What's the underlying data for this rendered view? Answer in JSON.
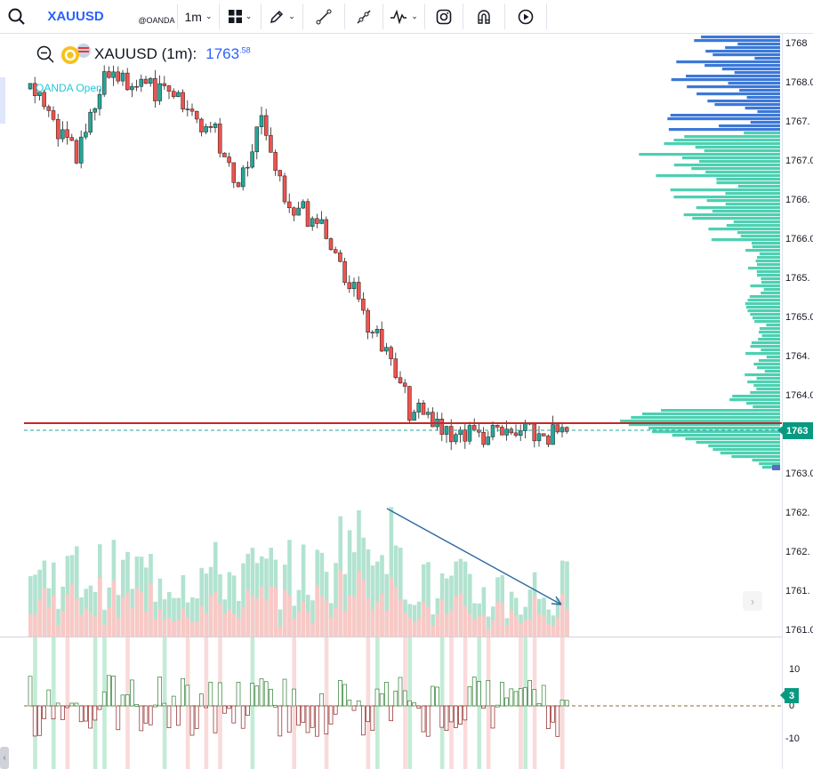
{
  "toolbar": {
    "symbol": "XAUUSD",
    "source": "@OANDA",
    "timeframe": "1m",
    "tools": [
      "search-icon",
      "chart-type-icon",
      "pencil-icon",
      "trendline-icon",
      "ray-icon",
      "indicators-icon",
      "camera-icon",
      "magnet-icon",
      "replay-icon"
    ]
  },
  "legend": {
    "title": "XAUUSD (1m):",
    "price_main": "1763",
    "price_frac": ".58"
  },
  "session": "OANDA Open",
  "price_axis": {
    "labels": [
      "1768",
      "1768.0",
      "1767.",
      "1767.0",
      "1766.",
      "1766.0",
      "1765.",
      "1765.0",
      "1764.",
      "1764.0",
      "1763.0",
      "1762.",
      "1762.",
      "1761.",
      "1761.0"
    ],
    "current": "1763"
  },
  "osc_axis": {
    "labels": [
      "10",
      "0",
      "-10"
    ],
    "current": "3"
  },
  "colors": {
    "up": "#26a69a",
    "down": "#ef5350",
    "accent": "#2962ff",
    "profile_up": "#4dd0b1",
    "profile_down": "#3c78d8"
  }
}
